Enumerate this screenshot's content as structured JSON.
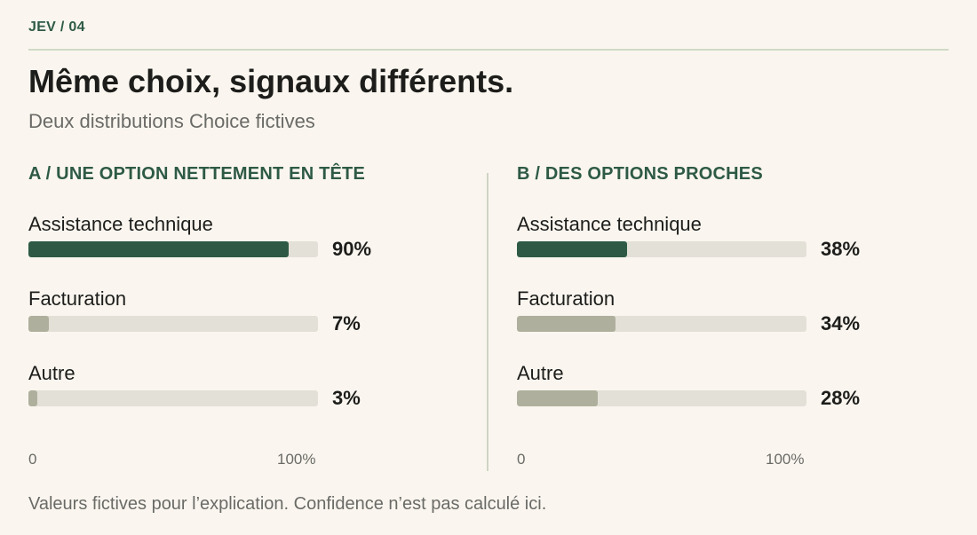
{
  "header": {
    "kicker": "JEV / 04",
    "title": "Même choix, signaux différents.",
    "subtitle": "Deux distributions Choice fictives"
  },
  "footnote": "Valeurs fictives pour l’explication. Confidence n’est pas calculé ici.",
  "colors": {
    "accent": "#2e5a45",
    "secondary_bar": "#aeb09d",
    "track": "#e3e0d7",
    "background": "#faf6ef"
  },
  "chart_data": [
    {
      "type": "bar",
      "orientation": "horizontal",
      "title": "A / UNE OPTION NETTEMENT EN TÊTE",
      "categories": [
        "Assistance technique",
        "Facturation",
        "Autre"
      ],
      "values": [
        90,
        7,
        3
      ],
      "value_labels": [
        "90%",
        "7%",
        "3%"
      ],
      "xlim": [
        0,
        100
      ],
      "axis_labels": [
        "0",
        "100%"
      ],
      "grid": false,
      "legend": "none"
    },
    {
      "type": "bar",
      "orientation": "horizontal",
      "title": "B / DES OPTIONS PROCHES",
      "categories": [
        "Assistance technique",
        "Facturation",
        "Autre"
      ],
      "values": [
        38,
        34,
        28
      ],
      "value_labels": [
        "38%",
        "34%",
        "28%"
      ],
      "xlim": [
        0,
        100
      ],
      "axis_labels": [
        "0",
        "100%"
      ],
      "grid": false,
      "legend": "none"
    }
  ]
}
